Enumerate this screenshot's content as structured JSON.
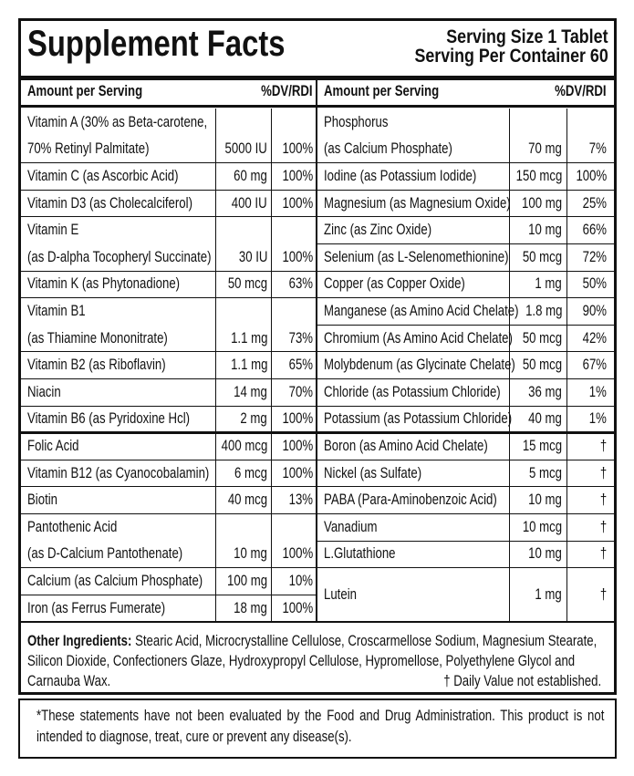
{
  "header": {
    "title": "Supplement Facts",
    "serving_size": "Serving Size 1 Tablet",
    "servings_per_container": "Serving Per Container 60"
  },
  "left_table": {
    "columns": [
      "Amount per Serving",
      "%DV/RDI"
    ],
    "rows": [
      {
        "name": [
          "Vitamin A (30% as Beta-carotene,",
          "70% Retinyl Palmitate)"
        ],
        "amount": "5000 IU",
        "dv": "100%"
      },
      {
        "name": [
          "Vitamin C (as Ascorbic Acid)"
        ],
        "amount": "60 mg",
        "dv": "100%"
      },
      {
        "name": [
          "Vitamin D3 (as Cholecalciferol)"
        ],
        "amount": "400 IU",
        "dv": "100%"
      },
      {
        "name": [
          "Vitamin E",
          "(as D-alpha Tocopheryl Succinate)"
        ],
        "amount": "30 IU",
        "dv": "100%"
      },
      {
        "name": [
          "Vitamin K (as Phytonadione)"
        ],
        "amount": "50 mcg",
        "dv": "63%"
      },
      {
        "name": [
          "Vitamin B1",
          "(as Thiamine Mononitrate)"
        ],
        "amount": "1.1 mg",
        "dv": "73%"
      },
      {
        "name": [
          "Vitamin B2 (as Riboflavin)"
        ],
        "amount": "1.1 mg",
        "dv": "65%"
      },
      {
        "name": [
          "Niacin"
        ],
        "amount": "14 mg",
        "dv": "70%"
      },
      {
        "name": [
          "Vitamin B6 (as Pyridoxine Hcl)"
        ],
        "amount": "2 mg",
        "dv": "100%"
      },
      {
        "name": [
          "Folic Acid"
        ],
        "amount": "400 mcg",
        "dv": "100%"
      },
      {
        "name": [
          "Vitamin B12 (as Cyanocobalamin)"
        ],
        "amount": "6 mcg",
        "dv": "100%"
      },
      {
        "name": [
          "Biotin"
        ],
        "amount": "40 mcg",
        "dv": "13%"
      },
      {
        "name": [
          "Pantothenic Acid",
          "(as D-Calcium Pantothenate)"
        ],
        "amount": "10 mg",
        "dv": "100%"
      },
      {
        "name": [
          "Calcium (as Calcium Phosphate)"
        ],
        "amount": "100 mg",
        "dv": "10%"
      },
      {
        "name": [
          "Iron (as Ferrus Fumerate)"
        ],
        "amount": "18 mg",
        "dv": "100%"
      }
    ]
  },
  "right_table": {
    "columns": [
      "Amount per Serving",
      "%DV/RDI"
    ],
    "rows": [
      {
        "name": [
          "Phosphorus",
          "(as Calcium Phosphate)"
        ],
        "amount": "70 mg",
        "dv": "7%"
      },
      {
        "name": [
          "Iodine (as Potassium Iodide)"
        ],
        "amount": "150 mcg",
        "dv": "100%"
      },
      {
        "name": [
          "Magnesium (as Magnesium Oxide)"
        ],
        "amount": "100 mg",
        "dv": "25%"
      },
      {
        "name": [
          "Zinc (as Zinc Oxide)"
        ],
        "amount": "10 mg",
        "dv": "66%"
      },
      {
        "name": [
          "Selenium (as L-Selenomethionine)"
        ],
        "amount": "50 mcg",
        "dv": "72%"
      },
      {
        "name": [
          "Copper (as Copper Oxide)"
        ],
        "amount": "1 mg",
        "dv": "50%"
      },
      {
        "name": [
          "Manganese (as Amino Acid Chelate)"
        ],
        "amount": "1.8 mg",
        "dv": "90%"
      },
      {
        "name": [
          "Chromium (As Amino Acid Chelate)"
        ],
        "amount": "50 mcg",
        "dv": "42%"
      },
      {
        "name": [
          "Molybdenum (as Glycinate Chelate)"
        ],
        "amount": "50 mcg",
        "dv": "67%"
      },
      {
        "name": [
          "Chloride (as Potassium Chloride)"
        ],
        "amount": "36 mg",
        "dv": "1%"
      },
      {
        "name": [
          "Potassium (as Potassium Chloride)"
        ],
        "amount": "40 mg",
        "dv": "1%"
      },
      {
        "name": [
          "Boron (as Amino Acid Chelate)"
        ],
        "amount": "15 mcg",
        "dv": "†"
      },
      {
        "name": [
          "Nickel (as Sulfate)"
        ],
        "amount": "5 mcg",
        "dv": "†"
      },
      {
        "name": [
          "PABA (Para-Aminobenzoic Acid)"
        ],
        "amount": "10 mg",
        "dv": "†"
      },
      {
        "name": [
          "Vanadium"
        ],
        "amount": "10 mcg",
        "dv": "†"
      },
      {
        "name": [
          "L.Glutathione"
        ],
        "amount": "10 mg",
        "dv": "†"
      },
      {
        "name": [
          "Lutein"
        ],
        "amount": "1 mg",
        "dv": "†"
      }
    ]
  },
  "other_ingredients": {
    "label": "Other Ingredients:",
    "text": "Stearic Acid, Microcrystalline Cellulose, Croscarmellose Sodium, Magnesium Stearate, Silicon Dioxide, Confectioners Glaze, Hydroxypropyl Cellulose, Hypromellose, Polyethylene Glycol and Carnauba Wax.",
    "note": "† Daily Value not established."
  },
  "disclaimer": "*These statements have not been evaluated by the Food and Drug Administration. This product is not intended to diagnose, treat, cure or prevent any disease(s)."
}
